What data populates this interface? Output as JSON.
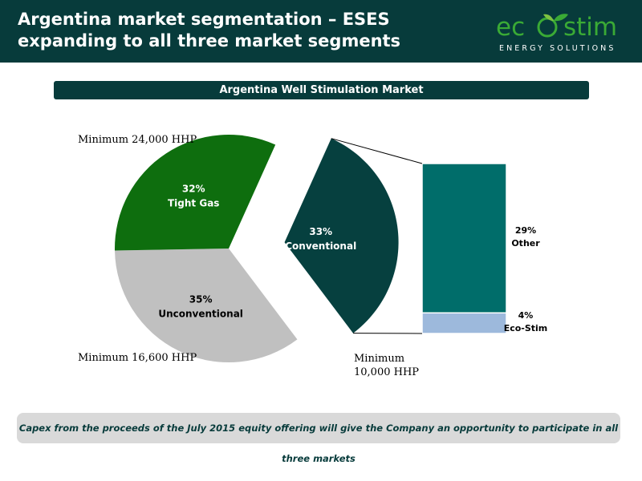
{
  "header": {
    "title": "Argentina market segmentation – ESES expanding to all three market segments",
    "bg_color": "#073b3b"
  },
  "logo": {
    "wordmark_left": "ec",
    "wordmark_right": "stim",
    "tagline": "ENERGY SOLUTIONS",
    "icon": "sprout-leaf-icon",
    "color": "#3aaa35"
  },
  "banner": {
    "label": "Argentina Well Stimulation Market"
  },
  "min_labels": {
    "unconventional": "Minimum 24,000 HHP",
    "tight_gas": "Minimum 16,600 HHP",
    "conventional_line1": "Minimum",
    "conventional_line2": "10,000 HHP"
  },
  "chart_data": [
    {
      "type": "pie",
      "slices": [
        {
          "label": "Unconventional",
          "percent_label": "35%",
          "value": 35,
          "color": "#c0c0c0",
          "exploded": false
        },
        {
          "label": "Tight Gas",
          "percent_label": "32%",
          "value": 32,
          "color": "#0e6e0e",
          "exploded": false
        },
        {
          "label": "Conventional",
          "percent_label": "33%",
          "value": 33,
          "color": "#06403f",
          "exploded": true
        }
      ]
    },
    {
      "type": "bar",
      "stacked": true,
      "breakdown_of": "Conventional",
      "segments": [
        {
          "label": "Other",
          "percent_label": "29%",
          "value": 29,
          "color": "#006d6a"
        },
        {
          "label": "Eco-Stim",
          "percent_label": "4%",
          "value": 4,
          "color": "#9db9dc"
        }
      ]
    }
  ],
  "footer": {
    "text": "Capex from the proceeds of the July 2015 equity offering will give the Company an opportunity to participate in all three markets"
  }
}
